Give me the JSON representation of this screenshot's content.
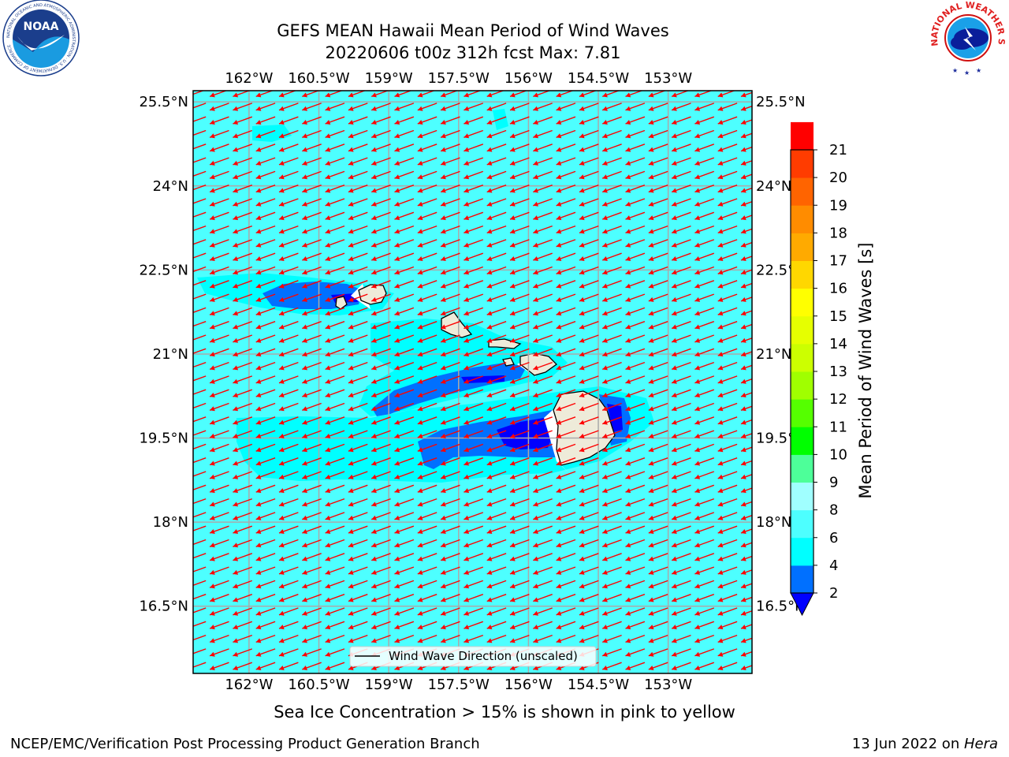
{
  "header": {
    "title_line1": "GEFS MEAN Hawaii Mean Period of Wind Waves",
    "title_line2": "20220606 t00z 312h fcst   Max: 7.81"
  },
  "logos": {
    "left_text": "NOAA",
    "left_ring_text": "NATIONAL OCEANIC AND ATMOSPHERIC ADMINISTRATION · U.S. DEPARTMENT OF COMMERCE",
    "right_ring_text": "NATIONAL WEATHER SERVICE"
  },
  "map": {
    "lon_range": [
      -163.2,
      -151.2
    ],
    "lat_range": [
      15.3,
      25.7
    ],
    "lon_labels": [
      "162°W",
      "160.5°W",
      "159°W",
      "157.5°W",
      "156°W",
      "154.5°W",
      "153°W"
    ],
    "lat_labels": [
      "25.5°N",
      "24°N",
      "22.5°N",
      "21°N",
      "19.5°N",
      "18°N",
      "16.5°N"
    ],
    "legend_label": "Wind Wave Direction (unscaled)",
    "arrow_color": "#ff0000",
    "ocean_color": "#4dffff",
    "land_color": "#eeebd9"
  },
  "colorbar": {
    "label": "Mean Period of Wind Waves [s]",
    "ticks": [
      "2",
      "4",
      "6",
      "8",
      "9",
      "10",
      "11",
      "12",
      "13",
      "14",
      "15",
      "16",
      "17",
      "18",
      "19",
      "20",
      "21"
    ],
    "colors": [
      "#0070ff",
      "#00ffff",
      "#4dffff",
      "#a0ffff",
      "#4dff99",
      "#00ff00",
      "#55ff00",
      "#a0ff00",
      "#ccff00",
      "#e6ff00",
      "#ffff00",
      "#ffd700",
      "#ffaa00",
      "#ff8c00",
      "#ff6400",
      "#ff3c00",
      "#ff0000"
    ],
    "extend_color": "#0000ff"
  },
  "caption": "Sea Ice Concentration > 15% is shown in pink to yellow",
  "footer": {
    "left": "NCEP/EMC/Verification Post Processing Product Generation Branch",
    "right_prefix": "13 Jun 2022 on ",
    "right_host": "Hera"
  }
}
